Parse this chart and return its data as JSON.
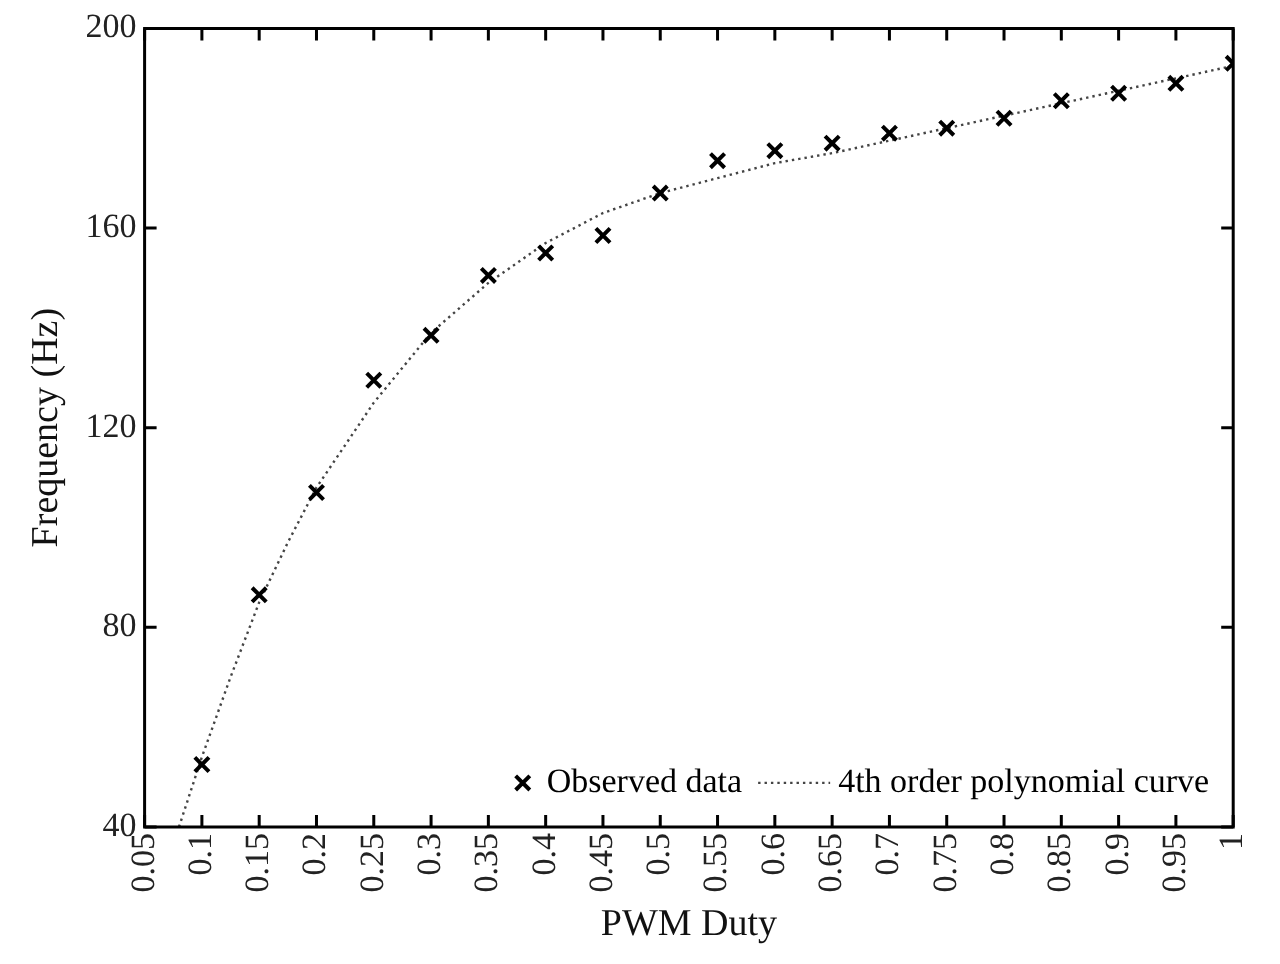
{
  "chart_data": {
    "type": "scatter",
    "xlabel": "PWM Duty",
    "ylabel": "Frequency (Hz)",
    "xlim": [
      0.05,
      1
    ],
    "xticks": [
      0.05,
      0.1,
      0.15,
      0.2,
      0.25,
      0.3,
      0.35,
      0.4,
      0.45,
      0.5,
      0.55,
      0.6,
      0.65,
      0.7,
      0.75,
      0.8,
      0.85,
      0.9,
      0.95,
      1
    ],
    "ylim": [
      40,
      200
    ],
    "yticks": [
      40,
      80,
      120,
      160,
      200
    ],
    "grid": false,
    "legend": "bottom right",
    "marker": "cross",
    "series": [
      {
        "name": "Observed data",
        "color": "#000000",
        "x": [
          0.1,
          0.15,
          0.2,
          0.25,
          0.3,
          0.35,
          0.4,
          0.45,
          0.5,
          0.55,
          0.6,
          0.65,
          0.7,
          0.75,
          0.8,
          0.85,
          0.9,
          0.95,
          1
        ],
        "values": [
          52.5,
          86.5,
          107,
          129.5,
          138.5,
          150.5,
          155,
          158.5,
          167,
          173.5,
          175.5,
          177,
          179,
          180,
          182,
          185.5,
          187,
          189,
          193
        ]
      },
      {
        "name": "4th order polynomial curve",
        "type": "line",
        "color": "#444444",
        "marker": "none",
        "line_style": "dotted",
        "x": [
          0.08,
          0.1,
          0.125,
          0.15,
          0.175,
          0.2,
          0.25,
          0.3,
          0.35,
          0.4,
          0.45,
          0.5,
          0.55,
          0.6,
          0.65,
          0.7,
          0.75,
          0.8,
          0.85,
          0.9,
          0.95,
          1
        ],
        "values": [
          40,
          54,
          70,
          85,
          97,
          108,
          125,
          139,
          149,
          157,
          163,
          167,
          170,
          173,
          175,
          177.5,
          180,
          182.5,
          185,
          187.5,
          190,
          192.5
        ]
      }
    ]
  }
}
